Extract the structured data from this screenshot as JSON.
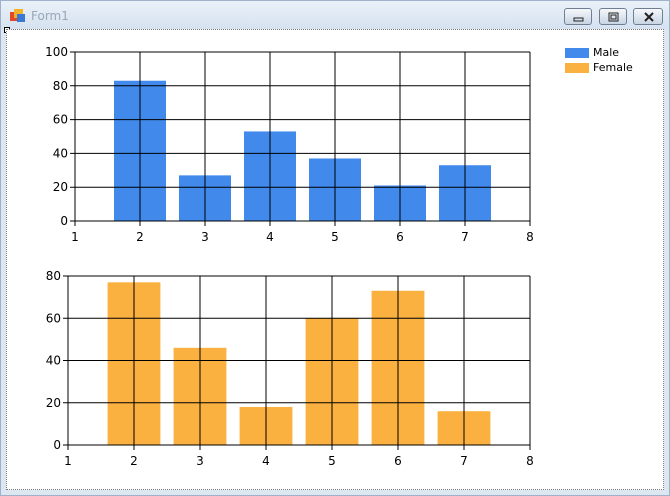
{
  "window": {
    "title": "Form1",
    "icon": "form-app-icon",
    "controls": [
      "minimize-icon",
      "restore-icon",
      "close-icon"
    ]
  },
  "colors": {
    "male": "#4189ea",
    "female": "#fbb140",
    "grid": "#000000"
  },
  "legend": {
    "placement": "top-right",
    "items": [
      {
        "label": "Male",
        "color": "#4189ea"
      },
      {
        "label": "Female",
        "color": "#fbb140"
      }
    ]
  },
  "chart_data": [
    {
      "type": "bar",
      "x": [
        2,
        3,
        4,
        5,
        6,
        7
      ],
      "series": [
        {
          "name": "Male",
          "values": [
            83,
            27,
            53,
            37,
            21,
            33
          ]
        }
      ],
      "xlim": [
        1,
        8
      ],
      "ylim": [
        0,
        100
      ],
      "xticks": [
        "1",
        "2",
        "3",
        "4",
        "5",
        "6",
        "7",
        "8"
      ],
      "yticks": [
        "0",
        "20",
        "40",
        "60",
        "80",
        "100"
      ],
      "grid": true
    },
    {
      "type": "bar",
      "x": [
        2,
        3,
        4,
        5,
        6,
        7
      ],
      "series": [
        {
          "name": "Female",
          "values": [
            77,
            46,
            18,
            60,
            73,
            16
          ]
        }
      ],
      "xlim": [
        1,
        8
      ],
      "ylim": [
        0,
        80
      ],
      "xticks": [
        "1",
        "2",
        "3",
        "4",
        "5",
        "6",
        "7",
        "8"
      ],
      "yticks": [
        "0",
        "20",
        "40",
        "60",
        "80"
      ],
      "grid": true
    }
  ]
}
